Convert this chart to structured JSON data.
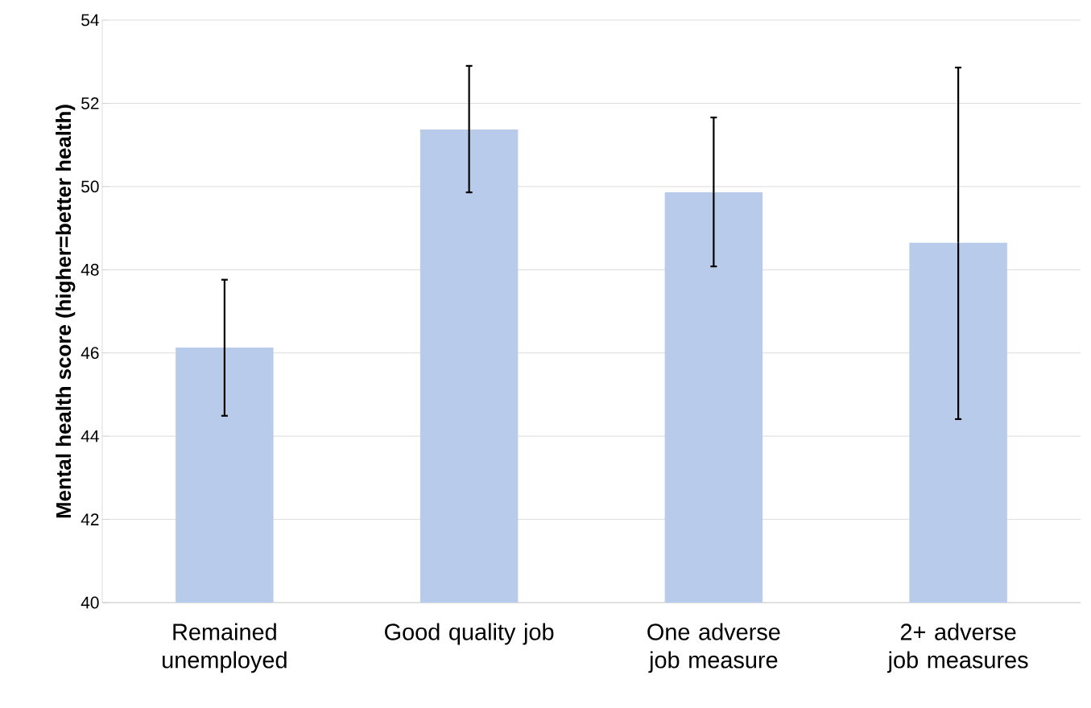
{
  "chart_data": {
    "type": "bar",
    "ylabel": "Mental health score (higher=better health)",
    "categories": [
      "Remained unemployed",
      "Good quality job",
      "One adverse job measure",
      "2+ adverse job measures"
    ],
    "values": [
      46.13,
      51.37,
      49.86,
      48.65
    ],
    "errors": [
      [
        44.49,
        47.76
      ],
      [
        49.86,
        52.9
      ],
      [
        48.08,
        51.66
      ],
      [
        44.41,
        52.86
      ]
    ],
    "color": "#b9cbeb",
    "ylim": [
      40,
      54
    ],
    "yticks": [
      40,
      42,
      44,
      46,
      48,
      50,
      52,
      54
    ],
    "grid": "y"
  }
}
